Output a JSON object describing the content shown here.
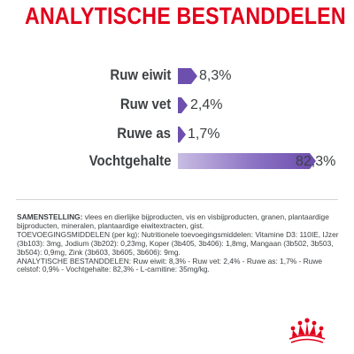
{
  "title": "ANALYTISCHE BESTANDDELEN",
  "rows": [
    {
      "label": "Ruw eiwit",
      "value": "8,3%",
      "percent": 8.3
    },
    {
      "label": "Ruw vet",
      "value": "2,4%",
      "percent": 2.4
    },
    {
      "label": "Ruwe as",
      "value": "1,7%",
      "percent": 1.7
    },
    {
      "label": "Vochtgehalte",
      "value": "82,3%",
      "percent": 82.3
    }
  ],
  "colors": {
    "title": "#e2001a",
    "bar": "#6d4fae",
    "text": "#3d4043",
    "logo": "#e2001a"
  },
  "composition": {
    "heading": "SAMENSTELLING:",
    "text": " vlees en dierlijke bijproducten, vis en visbijproducten, granen, plantaardige bijproducten, mineralen, plantaardige eiwitextracten, gist.",
    "additives_heading": "TOEVOEGINGSMIDDELEN",
    "additives_text": " (per kg): Nutritionele toevoegingsmiddelen: Vitamine D3: 110IE, IJzer (3b103): 3mg, Jodium (3b202): 0,23mg, Koper (3b405, 3b406): 1,8mg, Mangaan (3b502, 3b503, 3b504): 0,9mg, Zink (3b603, 3b605, 3b606): 9mg.",
    "analysis_heading": "ANALYTISCHE BESTANDDELEN",
    "analysis_text": ": Ruw eiwit: 8,3% - Ruw vet: 2,4% - Ruwe as: 1,7% - Ruwe celstof: 0,9% - Vochtgehalte: 82,3% - L-carnitine: 35mg/kg."
  },
  "logo_icon": "royal-canin-crown-logo"
}
